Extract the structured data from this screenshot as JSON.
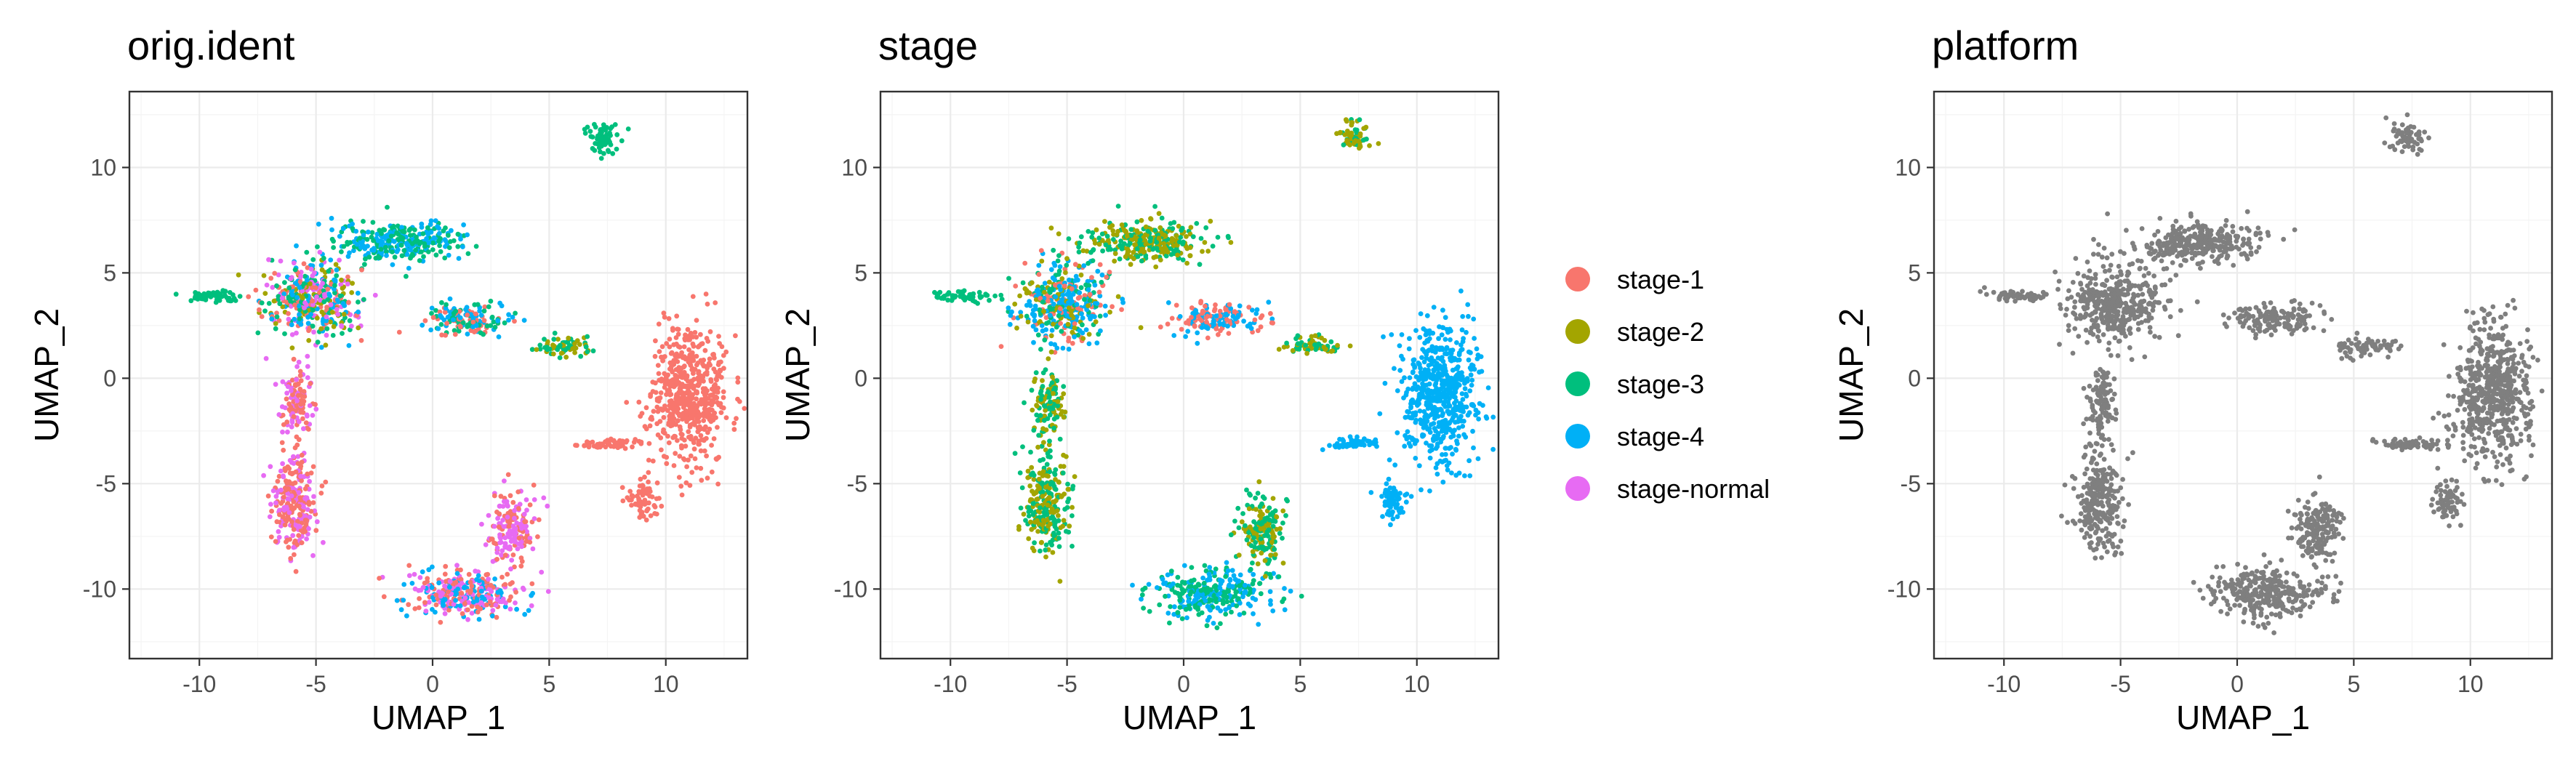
{
  "chart_data": [
    {
      "type": "scatter",
      "title": "orig.ident",
      "xlabel": "UMAP_1",
      "ylabel": "UMAP_2",
      "xlim": [
        -13,
        13.5
      ],
      "ylim": [
        -13.3,
        13.6
      ],
      "xticks": [
        -10,
        -5,
        0,
        5,
        10
      ],
      "yticks": [
        -10,
        -5,
        0,
        5,
        10
      ],
      "grid": true,
      "legend": "none",
      "clusters": [
        {
          "name": "cluster-left-large",
          "center": [
            -5.2,
            3.6
          ],
          "spread": [
            1.6,
            1.5
          ],
          "mix": [
            "#F8766D",
            "#A3A500",
            "#00BF7D",
            "#00B0F6",
            "#E76BF3"
          ]
        },
        {
          "name": "cluster-left-arm",
          "center": [
            -9.5,
            3.9
          ],
          "spread": [
            1.0,
            0.2
          ],
          "mix": [
            "#00BF7D"
          ]
        },
        {
          "name": "cluster-upper-arm",
          "center": [
            -1.5,
            6.5
          ],
          "spread": [
            2.2,
            0.8
          ],
          "mix": [
            "#00BF7D",
            "#00B0F6"
          ]
        },
        {
          "name": "cluster-left-stem",
          "center": [
            -5.8,
            -1.2
          ],
          "spread": [
            0.5,
            1.4
          ],
          "mix": [
            "#F8766D",
            "#E76BF3"
          ]
        },
        {
          "name": "cluster-bottom-left",
          "center": [
            -5.9,
            -6.0
          ],
          "spread": [
            0.8,
            1.9
          ],
          "mix": [
            "#F8766D",
            "#E76BF3"
          ]
        },
        {
          "name": "cluster-bottom-middle",
          "center": [
            1.2,
            -10.2
          ],
          "spread": [
            2.0,
            0.9
          ],
          "mix": [
            "#F8766D",
            "#E76BF3",
            "#00B0F6"
          ]
        },
        {
          "name": "cluster-bottom-right",
          "center": [
            3.4,
            -7.2
          ],
          "spread": [
            0.8,
            1.3
          ],
          "mix": [
            "#F8766D",
            "#E76BF3"
          ]
        },
        {
          "name": "cluster-right-large",
          "center": [
            11.0,
            -0.8
          ],
          "spread": [
            1.3,
            2.6
          ],
          "mix": [
            "#F8766D"
          ]
        },
        {
          "name": "cluster-right-arm",
          "center": [
            7.5,
            -3.1
          ],
          "spread": [
            1.1,
            0.2
          ],
          "mix": [
            "#F8766D"
          ]
        },
        {
          "name": "cluster-right-tail",
          "center": [
            9.0,
            -5.8
          ],
          "spread": [
            0.5,
            0.8
          ],
          "mix": [
            "#F8766D"
          ]
        },
        {
          "name": "cluster-middle-bridge",
          "center": [
            1.5,
            2.8
          ],
          "spread": [
            1.5,
            0.6
          ],
          "mix": [
            "#00B0F6",
            "#F8766D",
            "#00BF7D"
          ]
        },
        {
          "name": "cluster-middle-right",
          "center": [
            5.5,
            1.5
          ],
          "spread": [
            1.0,
            0.4
          ],
          "mix": [
            "#00BF7D",
            "#A3A500"
          ]
        },
        {
          "name": "cluster-top-right",
          "center": [
            7.3,
            11.4
          ],
          "spread": [
            0.6,
            0.6
          ],
          "mix": [
            "#00BF7D"
          ]
        }
      ]
    },
    {
      "type": "scatter",
      "title": "stage",
      "xlabel": "UMAP_1",
      "ylabel": "UMAP_2",
      "xlim": [
        -13,
        13.5
      ],
      "ylim": [
        -13.3,
        13.6
      ],
      "xticks": [
        -10,
        -5,
        0,
        5,
        10
      ],
      "yticks": [
        -10,
        -5,
        0,
        5,
        10
      ],
      "grid": true,
      "legend": "right",
      "clusters": [
        {
          "name": "cluster-left-large",
          "center": [
            -5.2,
            3.6
          ],
          "spread": [
            1.6,
            1.5
          ],
          "mix": [
            "#00B0F6",
            "#00B0F6",
            "#00BF7D",
            "#F8766D",
            "#A3A500"
          ]
        },
        {
          "name": "cluster-left-arm",
          "center": [
            -9.5,
            3.9
          ],
          "spread": [
            1.0,
            0.2
          ],
          "mix": [
            "#00BF7D"
          ]
        },
        {
          "name": "cluster-upper-arm",
          "center": [
            -1.5,
            6.5
          ],
          "spread": [
            2.2,
            0.8
          ],
          "mix": [
            "#00BF7D",
            "#A3A500"
          ]
        },
        {
          "name": "cluster-left-stem",
          "center": [
            -5.8,
            -1.2
          ],
          "spread": [
            0.5,
            1.4
          ],
          "mix": [
            "#00BF7D",
            "#A3A500"
          ]
        },
        {
          "name": "cluster-bottom-left",
          "center": [
            -5.9,
            -6.0
          ],
          "spread": [
            0.8,
            1.9
          ],
          "mix": [
            "#00BF7D",
            "#A3A500"
          ]
        },
        {
          "name": "cluster-bottom-middle",
          "center": [
            1.2,
            -10.2
          ],
          "spread": [
            2.0,
            0.9
          ],
          "mix": [
            "#00BF7D",
            "#00B0F6"
          ]
        },
        {
          "name": "cluster-bottom-right",
          "center": [
            3.4,
            -7.2
          ],
          "spread": [
            0.8,
            1.3
          ],
          "mix": [
            "#00BF7D",
            "#A3A500"
          ]
        },
        {
          "name": "cluster-right-large",
          "center": [
            11.0,
            -0.8
          ],
          "spread": [
            1.3,
            2.6
          ],
          "mix": [
            "#00B0F6"
          ]
        },
        {
          "name": "cluster-right-arm",
          "center": [
            7.5,
            -3.1
          ],
          "spread": [
            1.1,
            0.2
          ],
          "mix": [
            "#00B0F6"
          ]
        },
        {
          "name": "cluster-right-tail",
          "center": [
            9.0,
            -5.8
          ],
          "spread": [
            0.5,
            0.8
          ],
          "mix": [
            "#00B0F6"
          ]
        },
        {
          "name": "cluster-middle-bridge",
          "center": [
            1.5,
            2.8
          ],
          "spread": [
            1.5,
            0.6
          ],
          "mix": [
            "#F8766D",
            "#00B0F6"
          ]
        },
        {
          "name": "cluster-middle-right",
          "center": [
            5.5,
            1.5
          ],
          "spread": [
            1.0,
            0.4
          ],
          "mix": [
            "#00BF7D",
            "#A3A500"
          ]
        },
        {
          "name": "cluster-top-right",
          "center": [
            7.3,
            11.4
          ],
          "spread": [
            0.6,
            0.6
          ],
          "mix": [
            "#00BF7D",
            "#A3A500"
          ]
        }
      ],
      "legend_entries": [
        {
          "label": "stage-1",
          "color": "#F8766D"
        },
        {
          "label": "stage-2",
          "color": "#A3A500"
        },
        {
          "label": "stage-3",
          "color": "#00BF7D"
        },
        {
          "label": "stage-4",
          "color": "#00B0F6"
        },
        {
          "label": "stage-normal",
          "color": "#E76BF3"
        }
      ]
    },
    {
      "type": "scatter",
      "title": "platform",
      "xlabel": "UMAP_1",
      "ylabel": "UMAP_2",
      "xlim": [
        -13,
        13.5
      ],
      "ylim": [
        -13.3,
        13.6
      ],
      "xticks": [
        -10,
        -5,
        0,
        5,
        10
      ],
      "yticks": [
        -10,
        -5,
        0,
        5,
        10
      ],
      "grid": true,
      "legend": "none",
      "clusters": [
        {
          "name": "cluster-left-large",
          "center": [
            -5.2,
            3.6
          ],
          "spread": [
            1.6,
            1.5
          ],
          "mix": [
            "#7F7F7F"
          ]
        },
        {
          "name": "cluster-left-arm",
          "center": [
            -9.5,
            3.9
          ],
          "spread": [
            1.0,
            0.2
          ],
          "mix": [
            "#7F7F7F"
          ]
        },
        {
          "name": "cluster-upper-arm",
          "center": [
            -1.5,
            6.5
          ],
          "spread": [
            2.2,
            0.8
          ],
          "mix": [
            "#7F7F7F"
          ]
        },
        {
          "name": "cluster-left-stem",
          "center": [
            -5.8,
            -1.2
          ],
          "spread": [
            0.5,
            1.4
          ],
          "mix": [
            "#7F7F7F"
          ]
        },
        {
          "name": "cluster-bottom-left",
          "center": [
            -5.9,
            -6.0
          ],
          "spread": [
            0.8,
            1.9
          ],
          "mix": [
            "#7F7F7F"
          ]
        },
        {
          "name": "cluster-bottom-middle",
          "center": [
            1.2,
            -10.2
          ],
          "spread": [
            2.0,
            0.9
          ],
          "mix": [
            "#7F7F7F"
          ]
        },
        {
          "name": "cluster-bottom-right",
          "center": [
            3.4,
            -7.2
          ],
          "spread": [
            0.8,
            1.3
          ],
          "mix": [
            "#7F7F7F"
          ]
        },
        {
          "name": "cluster-right-large",
          "center": [
            11.0,
            -0.8
          ],
          "spread": [
            1.3,
            2.6
          ],
          "mix": [
            "#7F7F7F"
          ]
        },
        {
          "name": "cluster-right-arm",
          "center": [
            7.5,
            -3.1
          ],
          "spread": [
            1.1,
            0.2
          ],
          "mix": [
            "#7F7F7F"
          ]
        },
        {
          "name": "cluster-right-tail",
          "center": [
            9.0,
            -5.8
          ],
          "spread": [
            0.5,
            0.8
          ],
          "mix": [
            "#7F7F7F"
          ]
        },
        {
          "name": "cluster-middle-bridge",
          "center": [
            1.5,
            2.8
          ],
          "spread": [
            1.5,
            0.6
          ],
          "mix": [
            "#7F7F7F"
          ]
        },
        {
          "name": "cluster-middle-right",
          "center": [
            5.5,
            1.5
          ],
          "spread": [
            1.0,
            0.4
          ],
          "mix": [
            "#7F7F7F"
          ]
        },
        {
          "name": "cluster-top-right",
          "center": [
            7.3,
            11.4
          ],
          "spread": [
            0.6,
            0.6
          ],
          "mix": [
            "#7F7F7F"
          ]
        }
      ]
    }
  ]
}
